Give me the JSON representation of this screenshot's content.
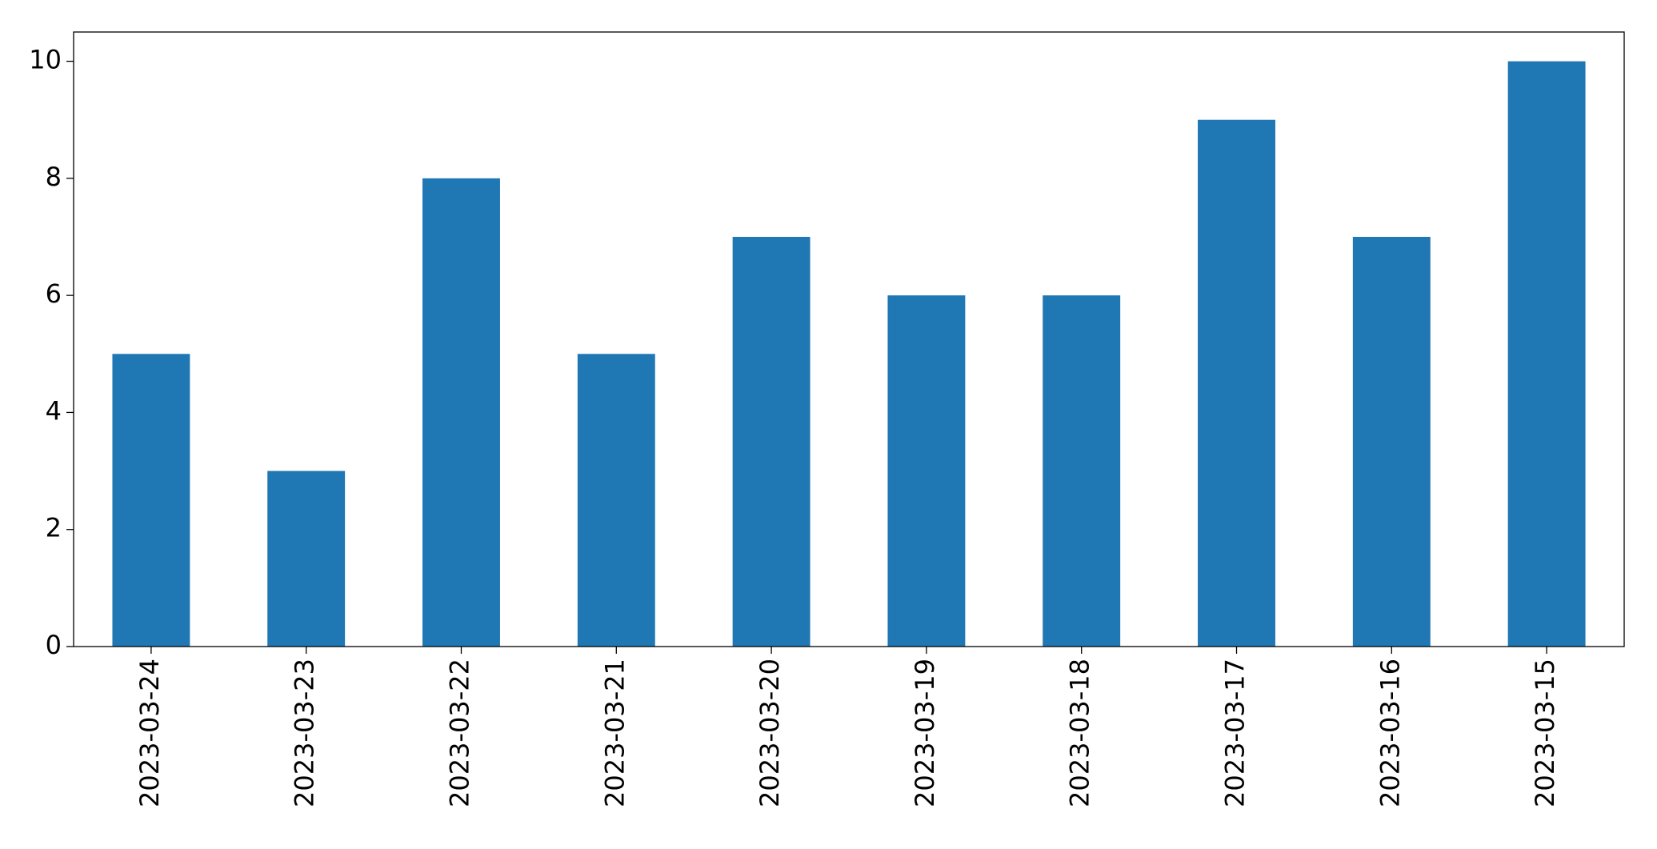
{
  "chart_data": {
    "type": "bar",
    "categories": [
      "2023-03-24",
      "2023-03-23",
      "2023-03-22",
      "2023-03-21",
      "2023-03-20",
      "2023-03-19",
      "2023-03-18",
      "2023-03-17",
      "2023-03-16",
      "2023-03-15"
    ],
    "values": [
      5,
      3,
      8,
      5,
      7,
      6,
      6,
      9,
      7,
      10
    ],
    "color": "#1f77b4",
    "ylim": [
      0,
      10.5
    ],
    "yticks": [
      0,
      2,
      4,
      6,
      8,
      10
    ],
    "grid": false
  }
}
